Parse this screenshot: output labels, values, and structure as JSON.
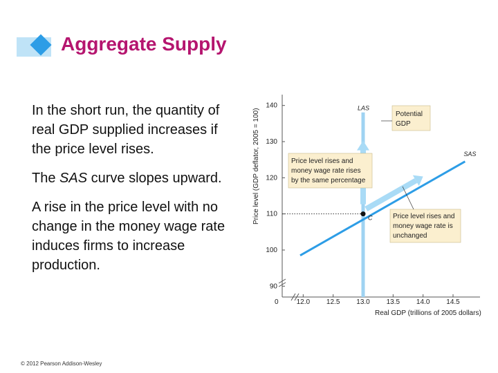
{
  "slide": {
    "title": "Aggregate Supply",
    "para1": "In the short run, the quantity of real GDP supplied increases if the price level rises.",
    "para2_prefix": "The ",
    "para2_italic": "SAS",
    "para2_suffix": " curve slopes upward.",
    "para3": "A rise in the price level with no change in the money wage rate induces firms to increase production.",
    "footer": "© 2012 Pearson Addison-Wesley",
    "colors": {
      "title": "#b5156f",
      "curve": "#2d9de6",
      "las": "#9fd3f2",
      "box": "#fbefcf"
    }
  },
  "chart_data": {
    "type": "line",
    "xlabel": "Real GDP (trillions of 2005 dollars)",
    "ylabel": "Price level (GDP deflator, 2005 = 100)",
    "x_ticks": [
      "12.0",
      "12.5",
      "13.0",
      "13.5",
      "14.0",
      "14.5"
    ],
    "x_tick_values": [
      12.0,
      12.5,
      13.0,
      13.5,
      14.0,
      14.5
    ],
    "y_ticks": [
      "90",
      "100",
      "110",
      "120",
      "130",
      "140"
    ],
    "y_tick_values": [
      90,
      100,
      110,
      120,
      130,
      140
    ],
    "origin_label": "0",
    "xlim": [
      11.65,
      14.95
    ],
    "ylim": [
      87,
      143
    ],
    "series": [
      {
        "name": "SAS",
        "x": [
          11.95,
          14.7
        ],
        "y": [
          98.5,
          124.5
        ]
      },
      {
        "name": "LAS",
        "x": [
          13.0,
          13.0
        ],
        "y": [
          87,
          140
        ]
      }
    ],
    "point": {
      "label": "C",
      "x": 13.0,
      "y": 110
    },
    "annotations": {
      "potential": "Potential GDP",
      "same_pct": "Price level rises and money wage rate rises by the same percentage",
      "unchanged": "Price level rises and money wage rate is unchanged"
    }
  }
}
